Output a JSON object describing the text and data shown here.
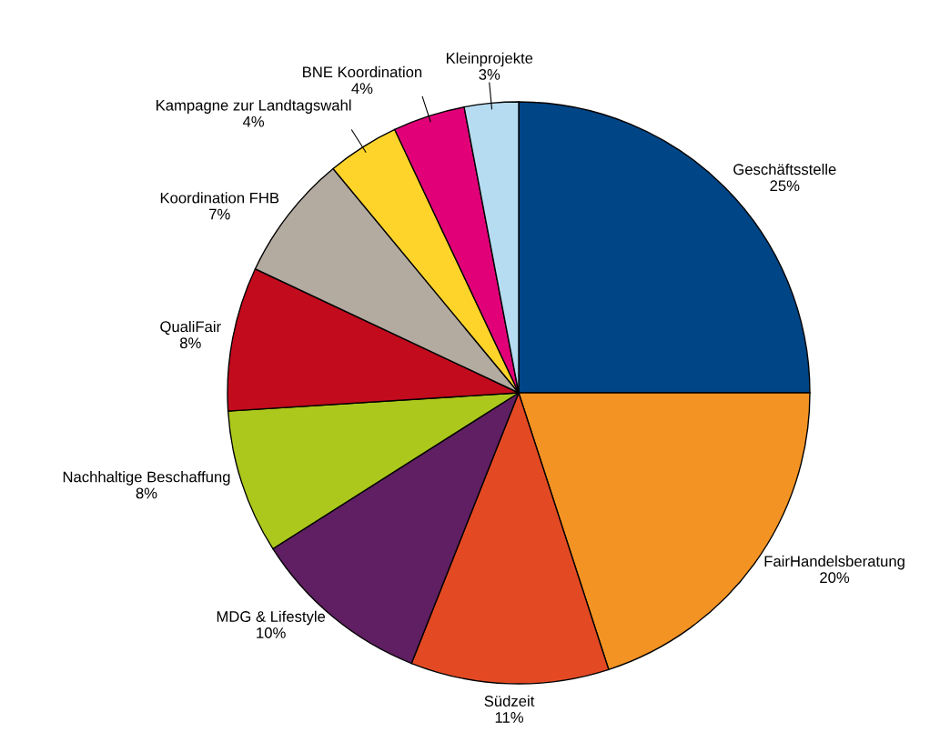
{
  "chart_data": {
    "type": "pie",
    "categories": [
      "Geschäftsstelle",
      "FairHandelsberatung",
      "Südzeit",
      "MDG & Lifestyle",
      "Nachhaltige Beschaffung",
      "QualiFair",
      "Koordination FHB",
      "Kampagne zur Landtagswahl",
      "BNE Koordination",
      "Kleinprojekte"
    ],
    "values": [
      25,
      20,
      11,
      10,
      8,
      8,
      7,
      4,
      4,
      3
    ],
    "colors": [
      "#004586",
      "#f29324",
      "#e34a24",
      "#5f1f62",
      "#adc81c",
      "#c20b1d",
      "#b3aaa0",
      "#ffd42a",
      "#e20079",
      "#b6dcf2"
    ],
    "value_labels": [
      "25%",
      "20%",
      "11%",
      "10%",
      "8%",
      "8%",
      "7%",
      "4%",
      "4%",
      "3%"
    ]
  }
}
